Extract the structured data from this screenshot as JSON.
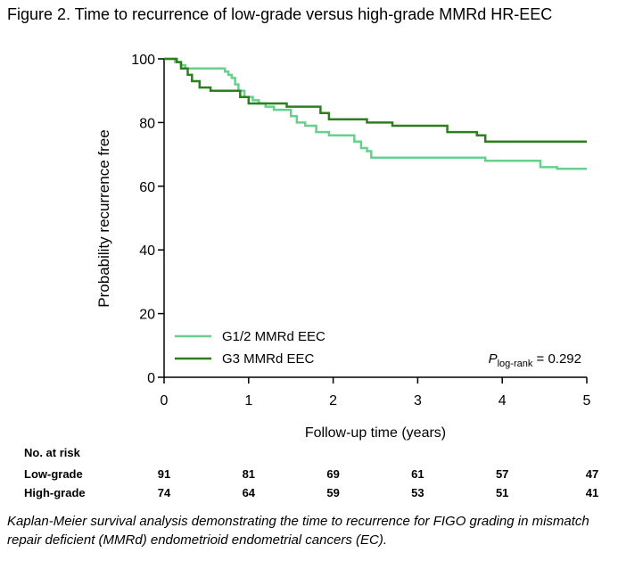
{
  "figure_title": "Figure 2. Time to recurrence of low-grade versus high-grade MMRd HR-EEC",
  "caption": "Kaplan-Meier survival analysis demonstrating the time to recurrence for FIGO grading in mismatch repair deficient (MMRd) endometrioid endometrial cancers (EC).",
  "chart_data": {
    "type": "line",
    "step": true,
    "title": "",
    "xlabel": "Follow-up time (years)",
    "ylabel": "Probability recurrence free",
    "xlim": [
      0,
      5
    ],
    "ylim": [
      0,
      100
    ],
    "x_ticks": [
      "0",
      "1",
      "2",
      "3",
      "4",
      "5"
    ],
    "y_ticks": [
      "0",
      "20",
      "40",
      "60",
      "80",
      "100"
    ],
    "grid": false,
    "legend_position": "bottom-left",
    "annotation": {
      "p_symbol": "P",
      "p_subscript": "log-rank",
      "p_text": " = 0.292",
      "position": "bottom-right"
    },
    "series": [
      {
        "name": "G1/2 MMRd EEC",
        "color": "#66d08c",
        "points": [
          [
            0,
            100
          ],
          [
            0.13,
            100
          ],
          [
            0.13,
            99
          ],
          [
            0.2,
            99
          ],
          [
            0.2,
            98
          ],
          [
            0.25,
            98
          ],
          [
            0.25,
            97
          ],
          [
            0.72,
            97
          ],
          [
            0.72,
            96
          ],
          [
            0.76,
            96
          ],
          [
            0.76,
            95
          ],
          [
            0.8,
            95
          ],
          [
            0.8,
            94
          ],
          [
            0.84,
            94
          ],
          [
            0.84,
            92
          ],
          [
            0.88,
            92
          ],
          [
            0.88,
            90
          ],
          [
            0.95,
            90
          ],
          [
            0.95,
            88
          ],
          [
            1.05,
            88
          ],
          [
            1.05,
            87
          ],
          [
            1.12,
            87
          ],
          [
            1.12,
            86
          ],
          [
            1.2,
            86
          ],
          [
            1.2,
            85
          ],
          [
            1.3,
            85
          ],
          [
            1.3,
            84
          ],
          [
            1.5,
            84
          ],
          [
            1.5,
            82
          ],
          [
            1.57,
            82
          ],
          [
            1.57,
            80
          ],
          [
            1.67,
            80
          ],
          [
            1.67,
            79
          ],
          [
            1.8,
            79
          ],
          [
            1.8,
            77
          ],
          [
            1.95,
            77
          ],
          [
            1.95,
            76
          ],
          [
            2.25,
            76
          ],
          [
            2.25,
            74
          ],
          [
            2.33,
            74
          ],
          [
            2.33,
            72
          ],
          [
            2.4,
            72
          ],
          [
            2.4,
            71
          ],
          [
            2.45,
            71
          ],
          [
            2.45,
            69
          ],
          [
            3.8,
            69
          ],
          [
            3.8,
            68
          ],
          [
            4.45,
            68
          ],
          [
            4.45,
            66
          ],
          [
            4.65,
            66
          ],
          [
            4.65,
            65.5
          ],
          [
            5,
            65.5
          ]
        ]
      },
      {
        "name": "G3 MMRd EEC",
        "color": "#2e7d1e",
        "points": [
          [
            0,
            100
          ],
          [
            0.15,
            100
          ],
          [
            0.15,
            99
          ],
          [
            0.2,
            99
          ],
          [
            0.2,
            97
          ],
          [
            0.28,
            97
          ],
          [
            0.28,
            95
          ],
          [
            0.33,
            95
          ],
          [
            0.33,
            93
          ],
          [
            0.42,
            93
          ],
          [
            0.42,
            91
          ],
          [
            0.55,
            91
          ],
          [
            0.55,
            90
          ],
          [
            0.9,
            90
          ],
          [
            0.9,
            88
          ],
          [
            1.0,
            88
          ],
          [
            1.0,
            86
          ],
          [
            1.45,
            86
          ],
          [
            1.45,
            85
          ],
          [
            1.85,
            85
          ],
          [
            1.85,
            83
          ],
          [
            1.95,
            83
          ],
          [
            1.95,
            81
          ],
          [
            2.4,
            81
          ],
          [
            2.4,
            80
          ],
          [
            2.7,
            80
          ],
          [
            2.7,
            79
          ],
          [
            3.35,
            79
          ],
          [
            3.35,
            77
          ],
          [
            3.7,
            77
          ],
          [
            3.7,
            76
          ],
          [
            3.8,
            76
          ],
          [
            3.8,
            74
          ],
          [
            5,
            74
          ]
        ]
      }
    ],
    "risk_table": {
      "header": "No. at risk",
      "times": [
        0,
        1,
        2,
        3,
        4,
        5
      ],
      "rows": [
        {
          "label": "Low-grade",
          "values": [
            "91",
            "81",
            "69",
            "61",
            "57",
            "47"
          ]
        },
        {
          "label": "High-grade",
          "values": [
            "74",
            "64",
            "59",
            "53",
            "51",
            "41"
          ]
        }
      ]
    }
  }
}
